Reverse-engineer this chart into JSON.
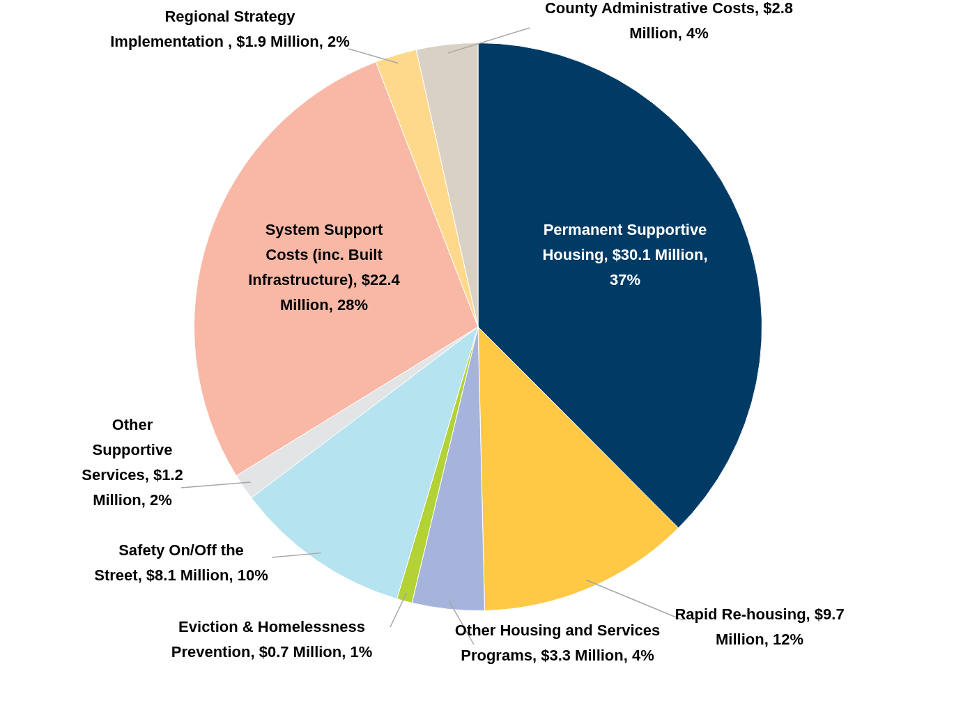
{
  "chart_data": {
    "type": "pie",
    "categories": [
      "Permanent Supportive Housing",
      "Rapid Re-housing",
      "Other Housing and Services Programs",
      "Eviction & Homelessness Prevention",
      "Safety On/Off the Street",
      "Other Supportive Services",
      "System Support Costs (inc. Built Infrastructure)",
      "Regional Strategy Implementation ",
      "County Administrative Costs"
    ],
    "values": [
      30.1,
      9.7,
      3.3,
      0.7,
      8.1,
      1.2,
      22.4,
      1.9,
      2.8
    ],
    "value_labels": [
      "$30.1 Million, 37%",
      "$9.7 Million, 12%",
      "$3.3 Million, 4%",
      "$0.7 Million, 1%",
      "$8.1 Million, 10%",
      "$1.2 Million, 2%",
      "$22.4 Million, 28%",
      "$1.9 Million, 2%",
      "$2.8 Million, 4%"
    ],
    "colors": [
      "#003b66",
      "#ffc845",
      "#a6b4dc",
      "#b2d235",
      "#b5e3ef",
      "#e2e4e6",
      "#f9b8a6",
      "#fed98b",
      "#d9d1c3"
    ],
    "legend": false
  }
}
